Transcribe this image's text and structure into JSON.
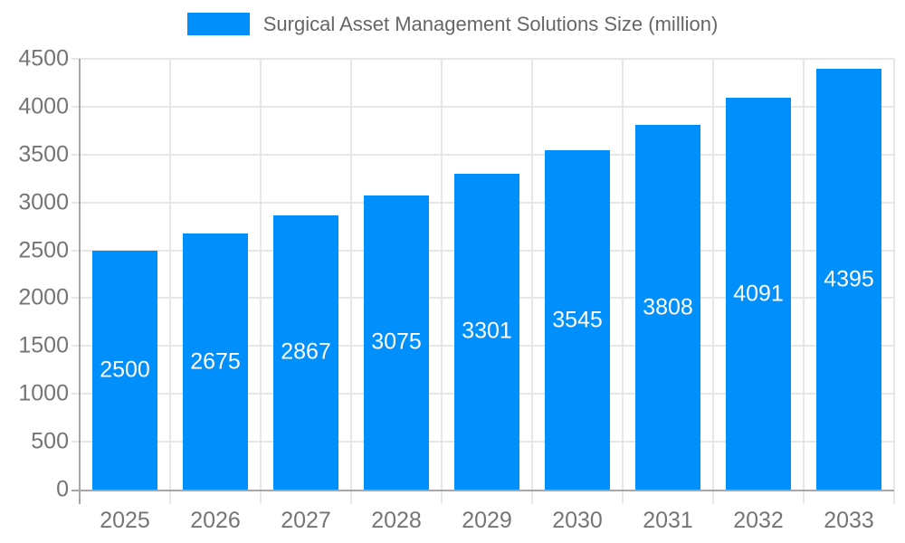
{
  "chart_data": {
    "type": "bar",
    "title": "Surgical Asset Management Solutions Size (million)",
    "categories": [
      "2025",
      "2026",
      "2027",
      "2028",
      "2029",
      "2030",
      "2031",
      "2032",
      "2033"
    ],
    "values": [
      2500,
      2675,
      2867,
      3075,
      3301,
      3545,
      3808,
      4091,
      4395
    ],
    "xlabel": "",
    "ylabel": "",
    "ylim": [
      0,
      4500
    ],
    "ytick_step": 500,
    "grid": true,
    "legend_position": "top",
    "bar_labels_visible": true,
    "bar_label_position": "center"
  },
  "colors": {
    "bar": "#008FFB",
    "bar_label": "#FFFFFF",
    "grid": "#E7E7E7",
    "axis": "#A6A6A6",
    "tick_label": "#757575",
    "title": "#666666",
    "background": "#FFFFFF"
  }
}
